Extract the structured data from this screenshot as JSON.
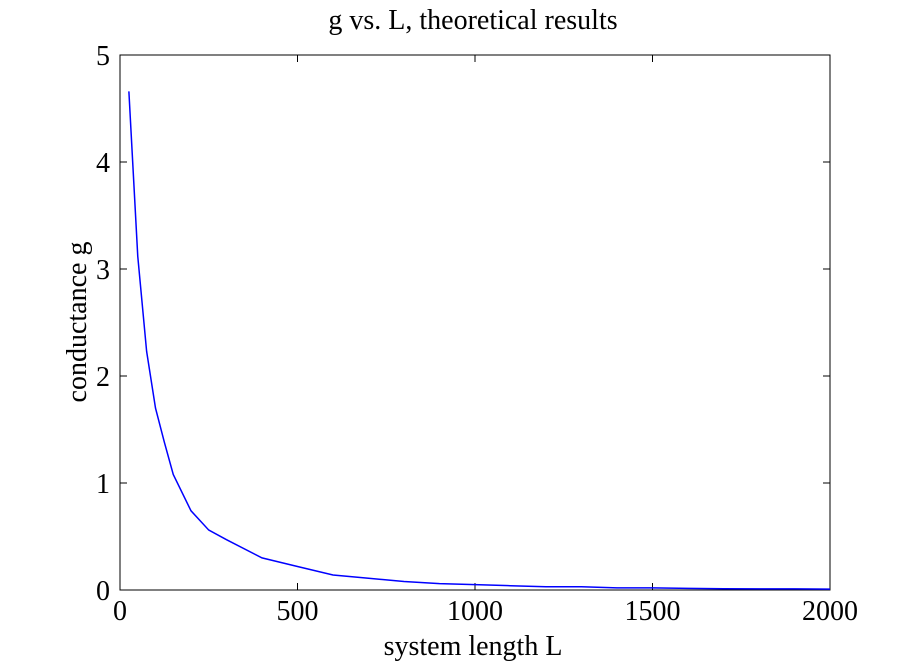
{
  "chart_data": {
    "type": "line",
    "title": "g vs. L, theoretical results",
    "xlabel": "system length L",
    "ylabel": "conductance g",
    "xlim": [
      0,
      2000
    ],
    "ylim": [
      0,
      5
    ],
    "xticks": [
      0,
      500,
      1000,
      1500,
      2000
    ],
    "yticks": [
      0,
      1,
      2,
      3,
      4,
      5
    ],
    "xtick_labels": [
      "0",
      "500",
      "1000",
      "1500",
      "2000"
    ],
    "ytick_labels": [
      "0",
      "1",
      "2",
      "3",
      "4",
      "5"
    ],
    "grid": false,
    "legend": "none",
    "line_color": "#0000ff",
    "series": [
      {
        "x": [
          25,
          50,
          75,
          100,
          125,
          150,
          200,
          250,
          300,
          400,
          500,
          600,
          700,
          800,
          900,
          1000,
          1100,
          1200,
          1300,
          1400,
          1500,
          1600,
          1700,
          1800,
          1900,
          2000
        ],
        "y": [
          4.66,
          3.12,
          2.23,
          1.7,
          1.38,
          1.08,
          0.74,
          0.56,
          0.47,
          0.3,
          0.22,
          0.14,
          0.11,
          0.08,
          0.06,
          0.05,
          0.04,
          0.03,
          0.03,
          0.02,
          0.02,
          0.015,
          0.012,
          0.01,
          0.01,
          0.008
        ]
      }
    ]
  }
}
